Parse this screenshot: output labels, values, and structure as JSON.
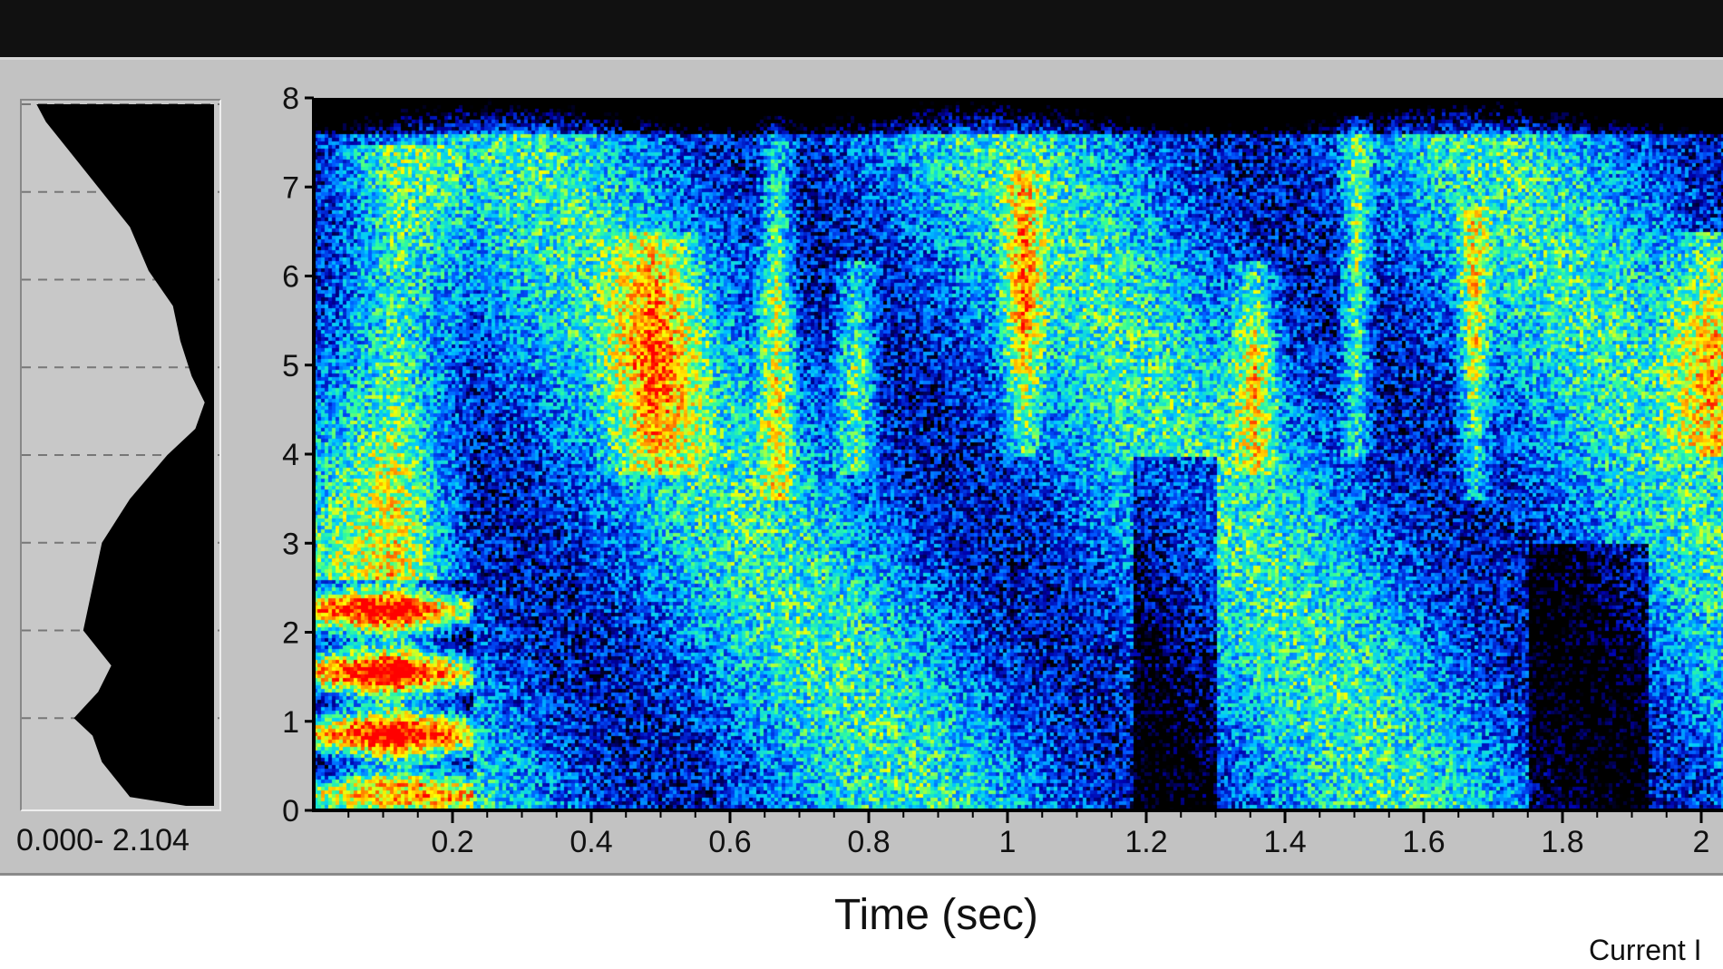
{
  "range_label": "0.000- 2.104",
  "xlabel": "Time (sec)",
  "status_text": "Current I",
  "colors": {
    "panel": "#c2c2c2",
    "topbar": "#111111",
    "colormap": [
      "#000000",
      "#0000aa",
      "#0055ff",
      "#00c8ff",
      "#33ff99",
      "#ffff00",
      "#ff9900",
      "#ff0000"
    ]
  },
  "chart_data": [
    {
      "type": "heatmap",
      "name": "spectrogram",
      "xlabel": "Time (sec)",
      "ylabel": "",
      "xlim": [
        0,
        2.1
      ],
      "ylim": [
        0,
        8
      ],
      "x_ticks": [
        "0.2",
        "0.4",
        "0.6",
        "0.8",
        "1",
        "1.2",
        "1.4",
        "1.6",
        "1.8",
        "2"
      ],
      "y_ticks": [
        "0",
        "1",
        "2",
        "3",
        "4",
        "5",
        "6",
        "7",
        "8"
      ],
      "high_energy_bands": [
        {
          "t_start": 0.0,
          "t_end": 0.23,
          "f_low": 0.3,
          "f_high": 7.5
        },
        {
          "t_start": 0.4,
          "t_end": 0.58,
          "f_low": 3.8,
          "f_high": 6.5
        },
        {
          "t_start": 0.63,
          "t_end": 0.7,
          "f_low": 3.5,
          "f_high": 7.8
        },
        {
          "t_start": 0.74,
          "t_end": 0.82,
          "f_low": 3.8,
          "f_high": 6.2
        },
        {
          "t_start": 0.98,
          "t_end": 1.06,
          "f_low": 4.0,
          "f_high": 7.2
        },
        {
          "t_start": 1.31,
          "t_end": 1.4,
          "f_low": 3.8,
          "f_high": 6.2
        },
        {
          "t_start": 1.47,
          "t_end": 1.53,
          "f_low": 4.0,
          "f_high": 7.8
        },
        {
          "t_start": 1.64,
          "t_end": 1.7,
          "f_low": 3.5,
          "f_high": 6.8
        },
        {
          "t_start": 1.93,
          "t_end": 2.1,
          "f_low": 4.0,
          "f_high": 6.5
        }
      ]
    },
    {
      "type": "area",
      "name": "average-spectrum",
      "range": [
        0.0,
        2.104
      ],
      "y_freq": [
        0,
        0.1,
        0.5,
        0.8,
        1.0,
        1.3,
        1.6,
        2.0,
        2.5,
        3.0,
        3.5,
        4.0,
        4.3,
        4.6,
        4.9,
        5.3,
        5.7,
        6.1,
        6.6,
        7.0,
        7.4,
        7.8,
        8.0
      ],
      "values": [
        0.15,
        0.45,
        0.6,
        0.65,
        0.75,
        0.62,
        0.55,
        0.7,
        0.65,
        0.6,
        0.45,
        0.25,
        0.1,
        0.05,
        0.12,
        0.18,
        0.22,
        0.35,
        0.45,
        0.6,
        0.75,
        0.9,
        0.95
      ]
    }
  ]
}
